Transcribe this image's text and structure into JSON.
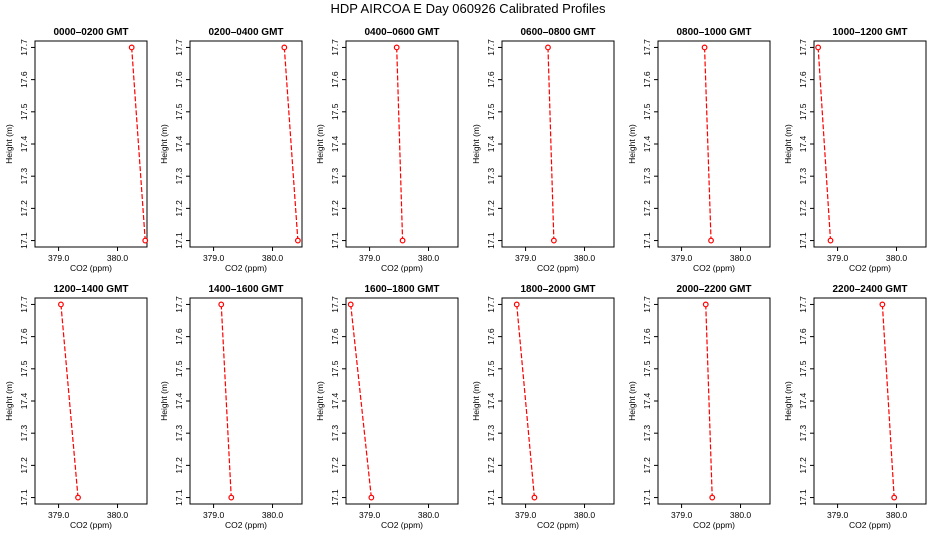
{
  "page": {
    "title": "HDP  AIRCOA E  Day 060926  Calibrated Profiles"
  },
  "style": {
    "line_color": "#ff0000",
    "marker_color": "#ff0000",
    "frame_color": "#000000",
    "background": "#ffffff"
  },
  "chart_data": [
    {
      "type": "line",
      "title": "0000–0200 GMT",
      "xlabel": "CO2 (ppm)",
      "ylabel": "Height (m)",
      "xlim": [
        378.6,
        380.5
      ],
      "ylim": [
        17.08,
        17.72
      ],
      "xticks": [
        379.0,
        380.0
      ],
      "xtick_labels": [
        "379.0",
        "380.0"
      ],
      "yticks": [
        17.1,
        17.2,
        17.3,
        17.4,
        17.5,
        17.6,
        17.7
      ],
      "ytick_labels": [
        "17.1",
        "17.2",
        "17.3",
        "17.4",
        "17.5",
        "17.6",
        "17.7"
      ],
      "grid": false,
      "series": [
        {
          "x": [
            380.24,
            380.47
          ],
          "y": [
            17.7,
            17.1
          ]
        }
      ]
    },
    {
      "type": "line",
      "title": "0200–0400 GMT",
      "xlabel": "CO2 (ppm)",
      "ylabel": "Height (m)",
      "xlim": [
        378.6,
        380.5
      ],
      "ylim": [
        17.08,
        17.72
      ],
      "xticks": [
        379.0,
        380.0
      ],
      "xtick_labels": [
        "379.0",
        "380.0"
      ],
      "yticks": [
        17.1,
        17.2,
        17.3,
        17.4,
        17.5,
        17.6,
        17.7
      ],
      "ytick_labels": [
        "17.1",
        "17.2",
        "17.3",
        "17.4",
        "17.5",
        "17.6",
        "17.7"
      ],
      "grid": false,
      "series": [
        {
          "x": [
            380.2,
            380.43
          ],
          "y": [
            17.7,
            17.1
          ]
        }
      ]
    },
    {
      "type": "line",
      "title": "0400–0600 GMT",
      "xlabel": "CO2 (ppm)",
      "ylabel": "Height (m)",
      "xlim": [
        378.6,
        380.5
      ],
      "ylim": [
        17.08,
        17.72
      ],
      "xticks": [
        379.0,
        380.0
      ],
      "xtick_labels": [
        "379.0",
        "380.0"
      ],
      "yticks": [
        17.1,
        17.2,
        17.3,
        17.4,
        17.5,
        17.6,
        17.7
      ],
      "ytick_labels": [
        "17.1",
        "17.2",
        "17.3",
        "17.4",
        "17.5",
        "17.6",
        "17.7"
      ],
      "grid": false,
      "series": [
        {
          "x": [
            379.46,
            379.56
          ],
          "y": [
            17.7,
            17.1
          ]
        }
      ]
    },
    {
      "type": "line",
      "title": "0600–0800 GMT",
      "xlabel": "CO2 (ppm)",
      "ylabel": "Height (m)",
      "xlim": [
        378.6,
        380.5
      ],
      "ylim": [
        17.08,
        17.72
      ],
      "xticks": [
        379.0,
        380.0
      ],
      "xtick_labels": [
        "379.0",
        "380.0"
      ],
      "yticks": [
        17.1,
        17.2,
        17.3,
        17.4,
        17.5,
        17.6,
        17.7
      ],
      "ytick_labels": [
        "17.1",
        "17.2",
        "17.3",
        "17.4",
        "17.5",
        "17.6",
        "17.7"
      ],
      "grid": false,
      "series": [
        {
          "x": [
            379.38,
            379.48
          ],
          "y": [
            17.7,
            17.1
          ]
        }
      ]
    },
    {
      "type": "line",
      "title": "0800–1000 GMT",
      "xlabel": "CO2 (ppm)",
      "ylabel": "Height (m)",
      "xlim": [
        378.6,
        380.5
      ],
      "ylim": [
        17.08,
        17.72
      ],
      "xticks": [
        379.0,
        380.0
      ],
      "xtick_labels": [
        "379.0",
        "380.0"
      ],
      "yticks": [
        17.1,
        17.2,
        17.3,
        17.4,
        17.5,
        17.6,
        17.7
      ],
      "ytick_labels": [
        "17.1",
        "17.2",
        "17.3",
        "17.4",
        "17.5",
        "17.6",
        "17.7"
      ],
      "grid": false,
      "series": [
        {
          "x": [
            379.39,
            379.5
          ],
          "y": [
            17.7,
            17.1
          ]
        }
      ]
    },
    {
      "type": "line",
      "title": "1000–1200 GMT",
      "xlabel": "CO2 (ppm)",
      "ylabel": "Height (m)",
      "xlim": [
        378.6,
        380.5
      ],
      "ylim": [
        17.08,
        17.72
      ],
      "xticks": [
        379.0,
        380.0
      ],
      "xtick_labels": [
        "379.0",
        "380.0"
      ],
      "yticks": [
        17.1,
        17.2,
        17.3,
        17.4,
        17.5,
        17.6,
        17.7
      ],
      "ytick_labels": [
        "17.1",
        "17.2",
        "17.3",
        "17.4",
        "17.5",
        "17.6",
        "17.7"
      ],
      "grid": false,
      "series": [
        {
          "x": [
            378.67,
            378.88
          ],
          "y": [
            17.7,
            17.1
          ]
        }
      ]
    },
    {
      "type": "line",
      "title": "1200–1400 GMT",
      "xlabel": "CO2 (ppm)",
      "ylabel": "Height (m)",
      "xlim": [
        378.6,
        380.5
      ],
      "ylim": [
        17.08,
        17.72
      ],
      "xticks": [
        379.0,
        380.0
      ],
      "xtick_labels": [
        "379.0",
        "380.0"
      ],
      "yticks": [
        17.1,
        17.2,
        17.3,
        17.4,
        17.5,
        17.6,
        17.7
      ],
      "ytick_labels": [
        "17.1",
        "17.2",
        "17.3",
        "17.4",
        "17.5",
        "17.6",
        "17.7"
      ],
      "grid": false,
      "series": [
        {
          "x": [
            379.04,
            379.33
          ],
          "y": [
            17.7,
            17.1
          ]
        }
      ]
    },
    {
      "type": "line",
      "title": "1400–1600 GMT",
      "xlabel": "CO2 (ppm)",
      "ylabel": "Height (m)",
      "xlim": [
        378.6,
        380.5
      ],
      "ylim": [
        17.08,
        17.72
      ],
      "xticks": [
        379.0,
        380.0
      ],
      "xtick_labels": [
        "379.0",
        "380.0"
      ],
      "yticks": [
        17.1,
        17.2,
        17.3,
        17.4,
        17.5,
        17.6,
        17.7
      ],
      "ytick_labels": [
        "17.1",
        "17.2",
        "17.3",
        "17.4",
        "17.5",
        "17.6",
        "17.7"
      ],
      "grid": false,
      "series": [
        {
          "x": [
            379.13,
            379.3
          ],
          "y": [
            17.7,
            17.1
          ]
        }
      ]
    },
    {
      "type": "line",
      "title": "1600–1800 GMT",
      "xlabel": "CO2 (ppm)",
      "ylabel": "Height (m)",
      "xlim": [
        378.6,
        380.5
      ],
      "ylim": [
        17.08,
        17.72
      ],
      "xticks": [
        379.0,
        380.0
      ],
      "xtick_labels": [
        "379.0",
        "380.0"
      ],
      "yticks": [
        17.1,
        17.2,
        17.3,
        17.4,
        17.5,
        17.6,
        17.7
      ],
      "ytick_labels": [
        "17.1",
        "17.2",
        "17.3",
        "17.4",
        "17.5",
        "17.6",
        "17.7"
      ],
      "grid": false,
      "series": [
        {
          "x": [
            378.68,
            379.03
          ],
          "y": [
            17.7,
            17.1
          ]
        }
      ]
    },
    {
      "type": "line",
      "title": "1800–2000 GMT",
      "xlabel": "CO2 (ppm)",
      "ylabel": "Height (m)",
      "xlim": [
        378.6,
        380.5
      ],
      "ylim": [
        17.08,
        17.72
      ],
      "xticks": [
        379.0,
        380.0
      ],
      "xtick_labels": [
        "379.0",
        "380.0"
      ],
      "yticks": [
        17.1,
        17.2,
        17.3,
        17.4,
        17.5,
        17.6,
        17.7
      ],
      "ytick_labels": [
        "17.1",
        "17.2",
        "17.3",
        "17.4",
        "17.5",
        "17.6",
        "17.7"
      ],
      "grid": false,
      "series": [
        {
          "x": [
            378.85,
            379.15
          ],
          "y": [
            17.7,
            17.1
          ]
        }
      ]
    },
    {
      "type": "line",
      "title": "2000–2200 GMT",
      "xlabel": "CO2 (ppm)",
      "ylabel": "Height (m)",
      "xlim": [
        378.6,
        380.5
      ],
      "ylim": [
        17.08,
        17.72
      ],
      "xticks": [
        379.0,
        380.0
      ],
      "xtick_labels": [
        "379.0",
        "380.0"
      ],
      "yticks": [
        17.1,
        17.2,
        17.3,
        17.4,
        17.5,
        17.6,
        17.7
      ],
      "ytick_labels": [
        "17.1",
        "17.2",
        "17.3",
        "17.4",
        "17.5",
        "17.6",
        "17.7"
      ],
      "grid": false,
      "series": [
        {
          "x": [
            379.41,
            379.52
          ],
          "y": [
            17.7,
            17.1
          ]
        }
      ]
    },
    {
      "type": "line",
      "title": "2200–2400 GMT",
      "xlabel": "CO2 (ppm)",
      "ylabel": "Height (m)",
      "xlim": [
        378.6,
        380.5
      ],
      "ylim": [
        17.08,
        17.72
      ],
      "xticks": [
        379.0,
        380.0
      ],
      "xtick_labels": [
        "379.0",
        "380.0"
      ],
      "yticks": [
        17.1,
        17.2,
        17.3,
        17.4,
        17.5,
        17.6,
        17.7
      ],
      "ytick_labels": [
        "17.1",
        "17.2",
        "17.3",
        "17.4",
        "17.5",
        "17.6",
        "17.7"
      ],
      "grid": false,
      "series": [
        {
          "x": [
            379.76,
            379.96
          ],
          "y": [
            17.7,
            17.1
          ]
        }
      ]
    }
  ]
}
